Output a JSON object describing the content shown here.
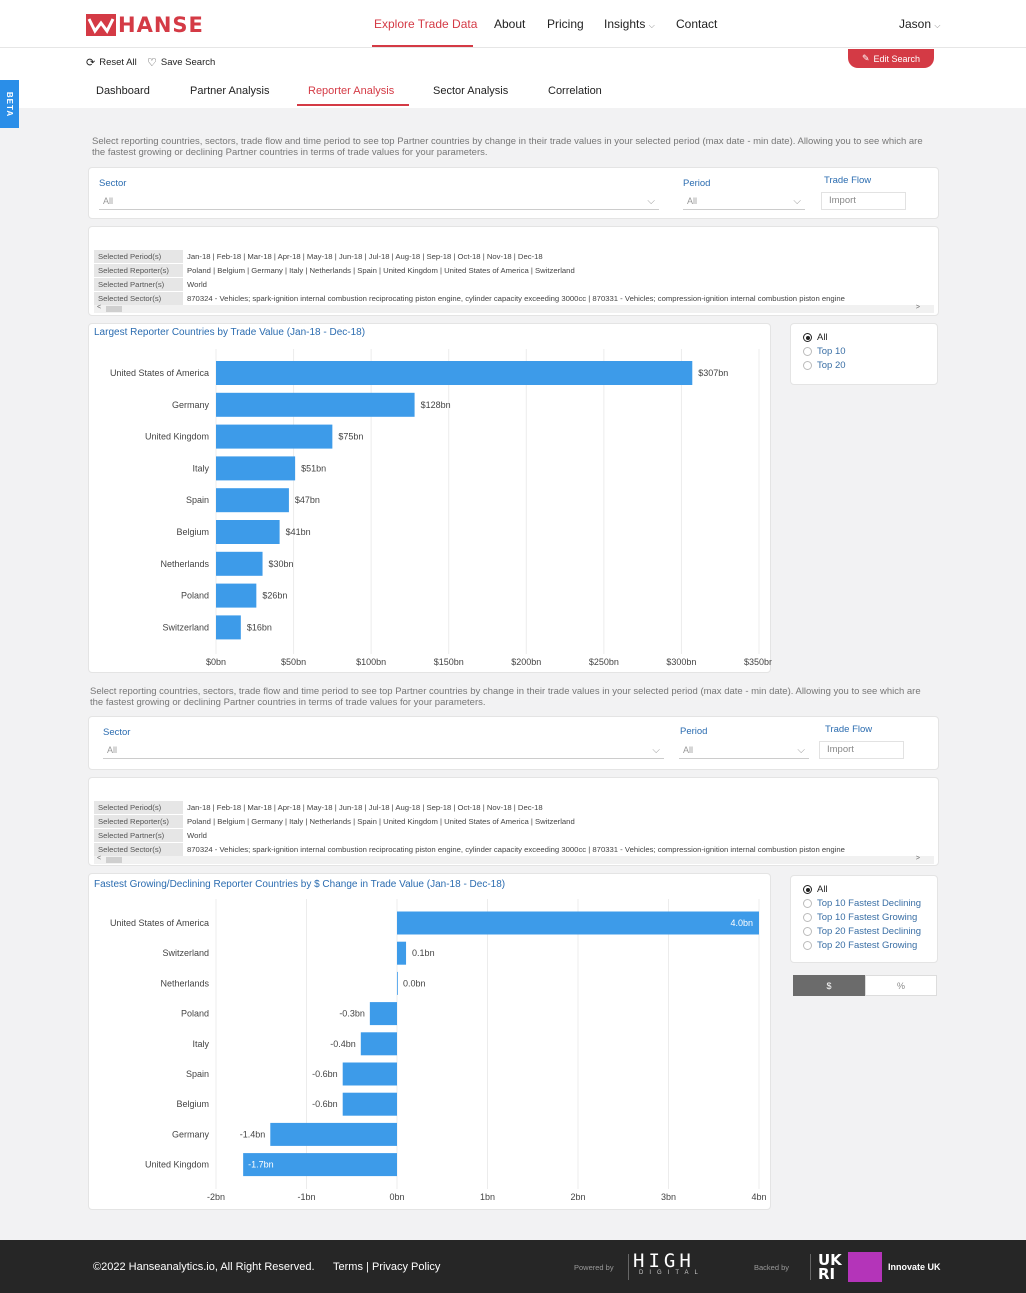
{
  "header": {
    "brand": "HANSE",
    "nav": [
      "Explore Trade Data",
      "About",
      "Pricing",
      "Insights",
      "Contact"
    ],
    "user": "Jason"
  },
  "actions": {
    "reset": "Reset All",
    "save": "Save Search",
    "edit": "Edit Search"
  },
  "tabs": [
    "Dashboard",
    "Partner Analysis",
    "Reporter Analysis",
    "Sector Analysis",
    "Correlation"
  ],
  "beta": "BETA",
  "description": "Select reporting countries, sectors, trade flow and time period to see top Partner countries by change in their trade values in your selected period (max date - min date). Allowing you to see which are the fastest growing or declining Partner countries in terms of trade values for your parameters.",
  "filters": {
    "sector_label": "Sector",
    "sector_value": "All",
    "period_label": "Period",
    "period_value": "All",
    "flow_label": "Trade Flow",
    "flow_value": "Import"
  },
  "selection": {
    "periods_key": "Selected Period(s)",
    "periods": "Jan-18  |  Feb-18  |  Mar-18  |  Apr-18  |  May-18  |  Jun-18  |  Jul-18  |  Aug-18  |  Sep-18  |  Oct-18  |  Nov-18  |  Dec-18",
    "reporters_key": "Selected Reporter(s)",
    "reporters": "Poland  |  Belgium  |  Germany  |  Italy  |  Netherlands  |  Spain  |  United Kingdom  |  United States of America  |  Switzerland",
    "partners_key": "Selected Partner(s)",
    "partners": "World",
    "sectors_key": "Selected Sector(s)",
    "sectors": "870324 - Vehicles; spark-ignition internal combustion reciprocating piston engine, cylinder capacity exceeding 3000cc  |  870331 - Vehicles; compression-ignition internal combustion piston engine"
  },
  "chart1_title": "Largest Reporter Countries by Trade Value (Jan-18 - Dec-18)",
  "chart1_options": [
    "All",
    "Top 10",
    "Top 20"
  ],
  "chart2_title": "Fastest Growing/Declining Reporter Countries by $ Change in Trade Value (Jan-18 - Dec-18)",
  "chart2_options": [
    "All",
    "Top 10 Fastest Declining",
    "Top 10 Fastest Growing",
    "Top 20 Fastest Declining",
    "Top 20 Fastest Growing"
  ],
  "unit_toggle": [
    "$",
    "%"
  ],
  "chart_data": [
    {
      "type": "bar",
      "orientation": "horizontal",
      "title": "Largest Reporter Countries by Trade Value (Jan-18 - Dec-18)",
      "categories": [
        "United States of America",
        "Germany",
        "United Kingdom",
        "Italy",
        "Spain",
        "Belgium",
        "Netherlands",
        "Poland",
        "Switzerland"
      ],
      "values": [
        307,
        128,
        75,
        51,
        47,
        41,
        30,
        26,
        16
      ],
      "labels": [
        "$307bn",
        "$128bn",
        "$75bn",
        "$51bn",
        "$47bn",
        "$41bn",
        "$30bn",
        "$26bn",
        "$16bn"
      ],
      "xticks": [
        "$0bn",
        "$50bn",
        "$100bn",
        "$150bn",
        "$200bn",
        "$250bn",
        "$300bn",
        "$350bn"
      ],
      "xlim": [
        0,
        350
      ],
      "color": "#3d9be9",
      "grid": true
    },
    {
      "type": "bar",
      "orientation": "horizontal",
      "title": "Fastest Growing/Declining Reporter Countries by $ Change in Trade Value (Jan-18 - Dec-18)",
      "categories": [
        "United States of America",
        "Switzerland",
        "Netherlands",
        "Poland",
        "Italy",
        "Spain",
        "Belgium",
        "Germany",
        "United Kingdom"
      ],
      "values": [
        4.0,
        0.1,
        0.0,
        -0.3,
        -0.4,
        -0.6,
        -0.6,
        -1.4,
        -1.7
      ],
      "labels": [
        "4.0bn",
        "0.1bn",
        "0.0bn",
        "-0.3bn",
        "-0.4bn",
        "-0.6bn",
        "-0.6bn",
        "-1.4bn",
        "-1.7bn"
      ],
      "xticks": [
        "-2bn",
        "-1bn",
        "0bn",
        "1bn",
        "2bn",
        "3bn",
        "4bn"
      ],
      "xlim": [
        -2,
        4
      ],
      "color": "#3d9be9",
      "grid": true
    }
  ],
  "footer": {
    "copyright": "©2022 Hanseanalytics.io, All Right Reserved.",
    "terms": "Terms",
    "privacy": "Privacy Policy",
    "powered": "Powered by",
    "high": "HIGH",
    "digital": "DIGITAL",
    "backed": "Backed by",
    "ukri": "UK RI",
    "innovate": "Innovate UK"
  }
}
